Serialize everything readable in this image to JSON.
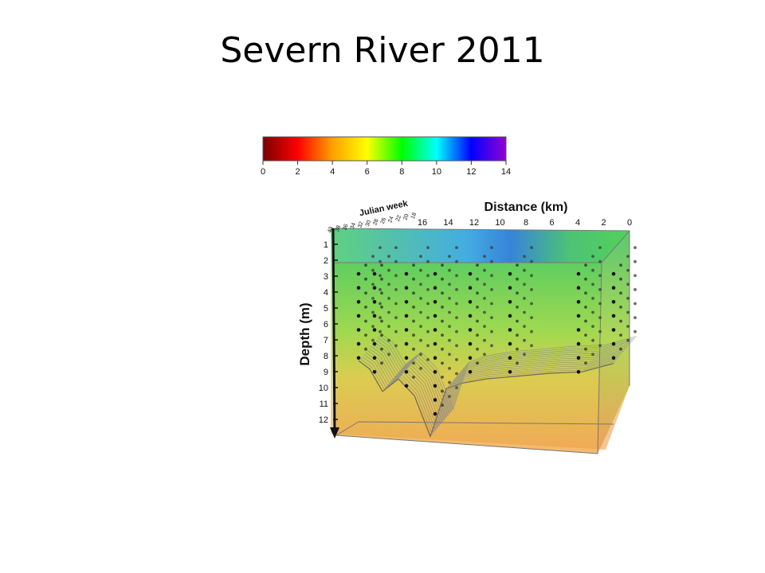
{
  "slide": {
    "title": "Severn River 2011"
  },
  "chart_data": {
    "type": "3d-volume",
    "title": "Severn River 2011",
    "colorbar": {
      "range": [
        0,
        14
      ],
      "ticks": [
        "0",
        "2",
        "4",
        "6",
        "8",
        "10",
        "12",
        "14"
      ],
      "colors": [
        "#7a0000",
        "#ff0000",
        "#ffa000",
        "#ffff00",
        "#00ff00",
        "#00ffff",
        "#0000ff",
        "#9400d3"
      ]
    },
    "axes": {
      "x": {
        "label": "Distance (km)",
        "ticks": [
          "16",
          "14",
          "12",
          "10",
          "8",
          "6",
          "4",
          "2",
          "0"
        ],
        "range": [
          16,
          0
        ]
      },
      "y": {
        "label": "Julian week",
        "ticks": [
          "40",
          "38",
          "36",
          "34",
          "32",
          "30",
          "28",
          "26",
          "24",
          "22",
          "20",
          "18"
        ]
      },
      "z": {
        "label": "Depth (m)",
        "ticks": [
          "1",
          "2",
          "3",
          "4",
          "5",
          "6",
          "7",
          "8",
          "9",
          "10",
          "11",
          "12"
        ],
        "range": [
          0,
          12.5
        ]
      }
    },
    "bottom_profile": [
      {
        "distance": 16,
        "depth": 7.0
      },
      {
        "distance": 15.3,
        "depth": 7.6
      },
      {
        "distance": 14.5,
        "depth": 9.2
      },
      {
        "distance": 13.5,
        "depth": 8.3
      },
      {
        "distance": 12.5,
        "depth": 9.5
      },
      {
        "distance": 11.5,
        "depth": 12.4
      },
      {
        "distance": 10.5,
        "depth": 9.0
      },
      {
        "distance": 9.5,
        "depth": 8.6
      },
      {
        "distance": 8,
        "depth": 8.3
      },
      {
        "distance": 6,
        "depth": 8.1
      },
      {
        "distance": 4,
        "depth": 7.9
      },
      {
        "distance": 2,
        "depth": 7.8
      },
      {
        "distance": 0,
        "depth": 7.2
      }
    ],
    "station_distances": [
      16,
      15,
      13,
      11.2,
      9,
      6.5,
      2.2,
      0
    ]
  }
}
